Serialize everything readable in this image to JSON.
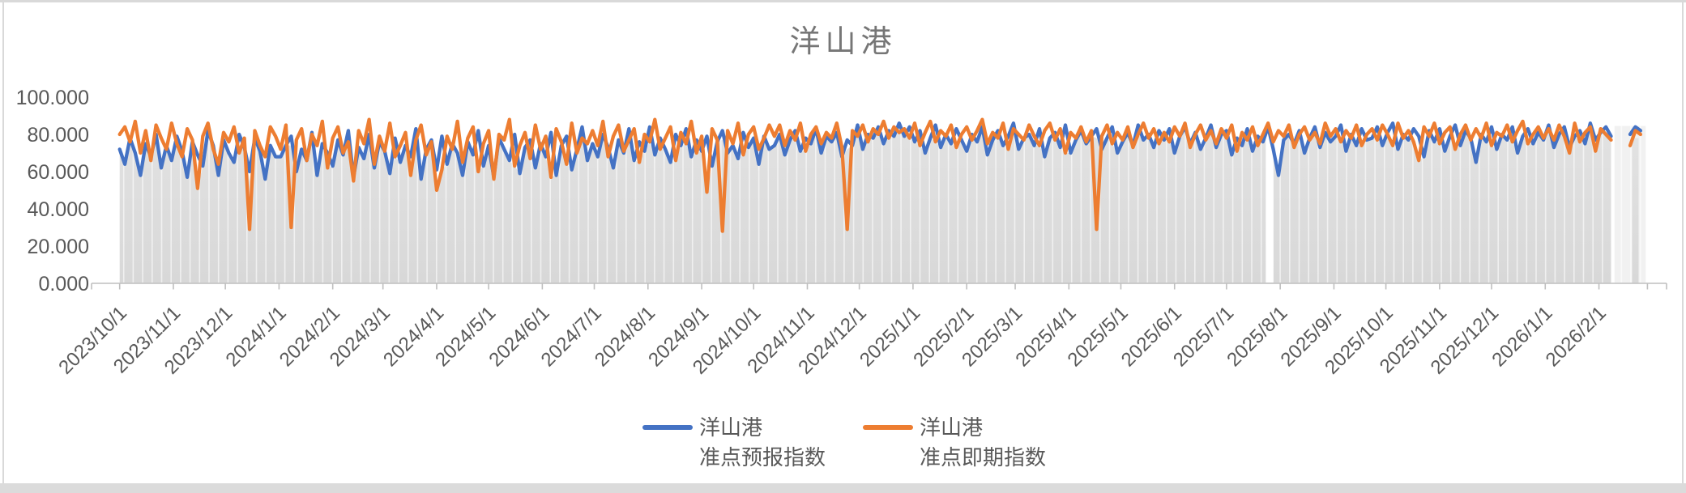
{
  "chart": {
    "title": "洋山港",
    "background": "#ffffff",
    "frame_border_color": "#d9d9d9",
    "title_color": "#767676",
    "axis_label_color": "#595959",
    "axis_line_color": "#bfbfbf"
  },
  "legend": {
    "position": "bottom",
    "items": [
      {
        "line1": "洋山港",
        "line2": "准点预报指数",
        "color": "#4472C4"
      },
      {
        "line1": "洋山港",
        "line2": "准点即期指数",
        "color": "#ED7D31"
      }
    ]
  },
  "y_axis": {
    "tick_labels": [
      "100.000",
      "80.000",
      "60.000",
      "40.000",
      "20.000",
      "0.000"
    ],
    "tick_values": [
      100,
      80,
      60,
      40,
      20,
      0
    ],
    "min": 0,
    "max": 100
  },
  "x_axis": {
    "tick_labels": [
      "2023/10/1",
      "2023/11/1",
      "2023/12/1",
      "2024/1/1",
      "2024/2/1",
      "2024/3/1",
      "2024/4/1",
      "2024/5/1",
      "2024/6/1",
      "2024/7/1",
      "2024/8/1",
      "2024/9/1",
      "2024/10/1",
      "2024/11/1",
      "2024/12/1",
      "2025/1/1",
      "2025/2/1",
      "2025/3/1",
      "2025/4/1",
      "2025/5/1",
      "2025/6/1",
      "2025/7/1",
      "2025/8/1",
      "2025/9/1",
      "2025/10/1",
      "2025/11/1",
      "2025/12/1",
      "2026/1/1",
      "2026/2/1"
    ],
    "month_start_days": [
      0,
      31,
      61,
      92,
      123,
      152,
      183,
      213,
      244,
      274,
      305,
      336,
      366,
      397,
      427,
      458,
      489,
      517,
      548,
      578,
      609,
      639,
      670,
      701,
      731,
      762,
      792,
      823,
      854
    ],
    "extra_tick_day": 882
  },
  "chart_data": {
    "type": "line",
    "title": "洋山港",
    "x_start_date": "2023/10/1",
    "sample_interval_days": 3,
    "ylim": [
      0,
      100
    ],
    "grid": "weekly vertical stripes over gray area only",
    "legend_position": "bottom",
    "series": [
      {
        "name": "洋山港 准点预报指数",
        "color": "#4472C4",
        "values": [
          72,
          64,
          78,
          70,
          58,
          75,
          68,
          80,
          62,
          74,
          66,
          79,
          71,
          57,
          76,
          69,
          63,
          82,
          74,
          58,
          77,
          70,
          65,
          80,
          73,
          60,
          78,
          71,
          56,
          74,
          68,
          68,
          74,
          79,
          60,
          72,
          66,
          81,
          58,
          75,
          70,
          63,
          77,
          69,
          82,
          57,
          73,
          67,
          80,
          62,
          76,
          71,
          59,
          78,
          65,
          74,
          68,
          83,
          56,
          72,
          77,
          61,
          79,
          64,
          75,
          70,
          58,
          76,
          69,
          82,
          63,
          74,
          57,
          78,
          72,
          66,
          80,
          59,
          73,
          77,
          62,
          75,
          68,
          81,
          58,
          74,
          79,
          61,
          72,
          84,
          66,
          75,
          68,
          80,
          73,
          62,
          77,
          70,
          83,
          66,
          76,
          71,
          84,
          69,
          78,
          72,
          65,
          80,
          74,
          83,
          68,
          77,
          71,
          79,
          63,
          76,
          82,
          70,
          74,
          67,
          81,
          73,
          78,
          64,
          79,
          72,
          74,
          80,
          69,
          77,
          82,
          71,
          78,
          75,
          83,
          70,
          79,
          76,
          81,
          68,
          77,
          74,
          85,
          72,
          80,
          78,
          84,
          75,
          82,
          79,
          86,
          79,
          84,
          76,
          82,
          70,
          78,
          85,
          73,
          80,
          75,
          83,
          77,
          71,
          80,
          76,
          84,
          69,
          77,
          82,
          74,
          79,
          86,
          72,
          78,
          80,
          74,
          83,
          68,
          78,
          81,
          73,
          85,
          70,
          77,
          82,
          75,
          79,
          83,
          72,
          78,
          84,
          70,
          76,
          81,
          74,
          85,
          77,
          80,
          73,
          82,
          77,
          83,
          70,
          79,
          84,
          75,
          81,
          72,
          78,
          85,
          73,
          80,
          82,
          69,
          78,
          74,
          83,
          71,
          79,
          76,
          84,
          72,
          58,
          77,
          80,
          75,
          82,
          70,
          78,
          84,
          73,
          81,
          76,
          79,
          85,
          71,
          80,
          74,
          83,
          77,
          78,
          84,
          74,
          81,
          86,
          72,
          80,
          77,
          83,
          79,
          68,
          82,
          76,
          83,
          71,
          79,
          85,
          74,
          82,
          78,
          65,
          80,
          76,
          84,
          72,
          80,
          77,
          84,
          70,
          79,
          83,
          75,
          81,
          77,
          85,
          73,
          80,
          84,
          73,
          79,
          82,
          75,
          86,
          77,
          81,
          84,
          79
        ]
      },
      {
        "name": "洋山港 准点即期指数",
        "color": "#ED7D31",
        "values": [
          80,
          84,
          76,
          87,
          70,
          82,
          66,
          85,
          78,
          72,
          86,
          75,
          68,
          83,
          77,
          51,
          79,
          86,
          72,
          64,
          81,
          76,
          84,
          70,
          78,
          29,
          82,
          74,
          68,
          84,
          79,
          72,
          85,
          30,
          77,
          83,
          66,
          80,
          74,
          87,
          62,
          78,
          84,
          70,
          76,
          55,
          82,
          75,
          88,
          64,
          79,
          71,
          86,
          68,
          74,
          81,
          58,
          77,
          85,
          69,
          76,
          50,
          61,
          79,
          72,
          87,
          65,
          78,
          84,
          60,
          75,
          82,
          56,
          80,
          77,
          88,
          63,
          74,
          81,
          67,
          85,
          72,
          79,
          57,
          83,
          76,
          64,
          86,
          70,
          78,
          75,
          82,
          74,
          87,
          68,
          79,
          85,
          71,
          77,
          83,
          65,
          80,
          76,
          88,
          72,
          78,
          84,
          66,
          81,
          75,
          87,
          70,
          79,
          49,
          83,
          77,
          28,
          82,
          75,
          86,
          69,
          80,
          84,
          72,
          78,
          85,
          79,
          85,
          74,
          82,
          77,
          86,
          71,
          80,
          84,
          75,
          81,
          78,
          86,
          73,
          29,
          82,
          79,
          85,
          76,
          83,
          80,
          87,
          78,
          84,
          81,
          83,
          78,
          86,
          74,
          81,
          87,
          76,
          82,
          79,
          85,
          73,
          80,
          84,
          77,
          82,
          88,
          75,
          81,
          78,
          86,
          72,
          83,
          80,
          77,
          85,
          79,
          74,
          82,
          86,
          77,
          83,
          70,
          81,
          78,
          84,
          76,
          82,
          29,
          79,
          85,
          75,
          81,
          77,
          84,
          73,
          80,
          86,
          78,
          83,
          75,
          81,
          76,
          84,
          79,
          86,
          73,
          80,
          85,
          77,
          82,
          75,
          83,
          78,
          85,
          71,
          81,
          77,
          84,
          74,
          80,
          86,
          76,
          82,
          79,
          85,
          73,
          80,
          84,
          77,
          81,
          75,
          86,
          79,
          83,
          76,
          82,
          78,
          85,
          74,
          80,
          83,
          77,
          85,
          80,
          74,
          86,
          78,
          82,
          76,
          66,
          84,
          79,
          86,
          75,
          81,
          84,
          72,
          80,
          85,
          77,
          83,
          78,
          86,
          74,
          81,
          79,
          85,
          76,
          82,
          87,
          75,
          80,
          84,
          78,
          83,
          77,
          85,
          79,
          70,
          86,
          76,
          81,
          84,
          71,
          83,
          80,
          77
        ]
      }
    ],
    "tail_points": {
      "days": [
        872,
        875,
        878
      ],
      "forecast": [
        80,
        84,
        82
      ],
      "spot": [
        74,
        82,
        80
      ]
    },
    "background_area": {
      "color_top": "#e2e2e2",
      "color_bottom": "#d8d8d8",
      "stripe_color": "rgba(255,255,255,0.6)",
      "gap_day": 664,
      "light_band_days": [
        863,
        881
      ],
      "light_band_color": "#f1f1f1"
    }
  }
}
